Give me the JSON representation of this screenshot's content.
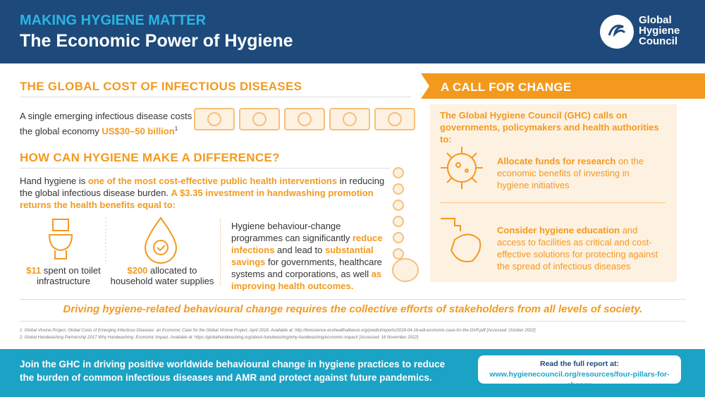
{
  "header": {
    "subtitle": "MAKING HYGIENE MATTER",
    "title": "The Economic Power of Hygiene",
    "logo": [
      "Global",
      "Hygiene",
      "Council"
    ]
  },
  "cost": {
    "heading": "THE GLOBAL COST OF INFECTIOUS DISEASES",
    "text": [
      "A single emerging infectious disease costs the global economy ",
      "US$30–50 billion",
      "1"
    ]
  },
  "difference": {
    "heading": "HOW CAN HYGIENE MAKE A DIFFERENCE?",
    "text": [
      "Hand hygiene is ",
      "one of the most cost-effective public health interventions",
      " in reducing the global infectious disease burden. ",
      "A $3.35 investment in handwashing promotion returns the health benefits equal to:"
    ],
    "items": [
      [
        "$11",
        " spent on toilet infrastructure"
      ],
      [
        "$200",
        " allocated to household water supplies"
      ]
    ],
    "programmes": [
      "Hygiene behaviour-change programmes can significantly ",
      "reduce infections",
      " and lead to ",
      "substantial savings",
      " for governments, healthcare systems and corporations, as well ",
      "as improving health outcomes."
    ]
  },
  "call": {
    "heading": "A CALL FOR CHANGE",
    "intro": "The Global Hygiene Council (GHC) calls on governments, policymakers and health authorities to:",
    "actions": [
      [
        "Allocate funds for research",
        " on the economic benefits of investing in hygiene initiatives"
      ],
      [
        "Consider hygiene education",
        " and access to facilities as critical and cost-effective solutions for protecting against the spread of infectious diseases"
      ]
    ]
  },
  "banner": "Driving hygiene-related behavioural change requires the collective efforts of stakeholders from all levels of society.",
  "references": [
    "1.   Global Virome Project. Global Costs of Emerging Infectious Diseases: an Economic Case for the Global Virome Project. April 2018. Available at: http://livescience.ecohealthalliance.org/predict/reports/2018-04-16-edi-economic-case-for-the-GVP.pdf [Accessed: October 2022]",
    "2.   Global Handwashing Partnership 2017 Why Handwashing: Economic Impact. Available at: https://globalhandwashing.org/about-handwashing/why-handwashing/economic-impact/ [Accessed: 16 November 2022]"
  ],
  "footer": {
    "text": "Join the GHC in driving positive worldwide behavioural change in hygiene practices to reduce the burden of common infectious diseases and AMR and protect against future pandemics.",
    "link_label": "Read the full report at:",
    "link": "www.hygienecouncil.org/resources/four-pillars-for-change"
  }
}
